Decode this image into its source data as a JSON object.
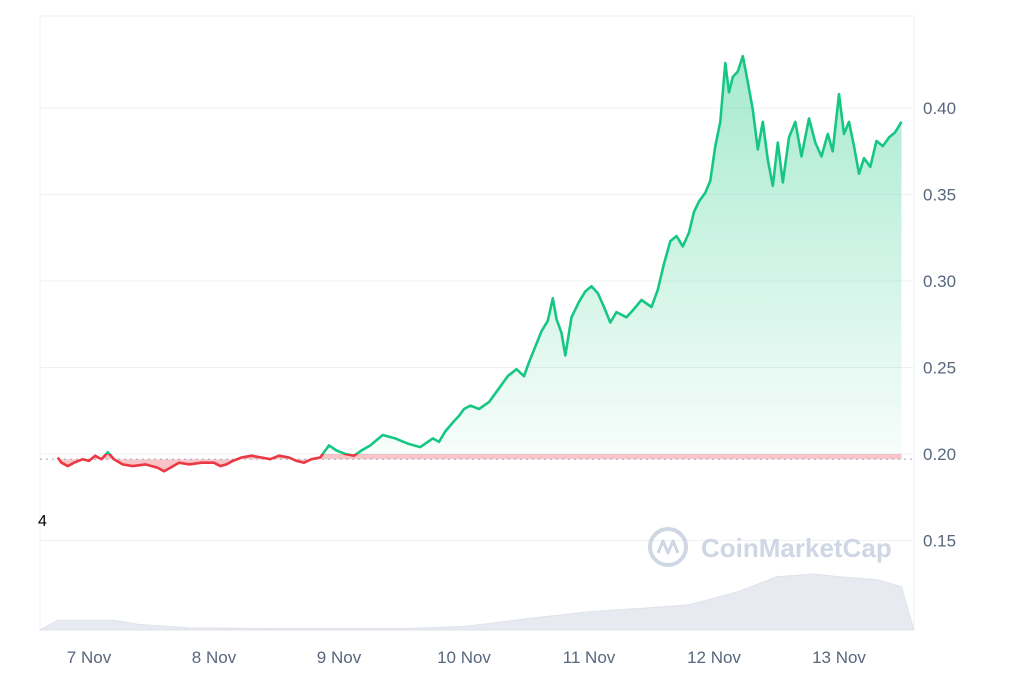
{
  "chart_data": {
    "type": "area",
    "title": "",
    "xlabel": "",
    "ylabel": "",
    "x_tick_labels": [
      "7 Nov",
      "8 Nov",
      "9 Nov",
      "10 Nov",
      "11 Nov",
      "12 Nov",
      "13 Nov"
    ],
    "y_tick_labels": [
      "0.15",
      "0.20",
      "0.25",
      "0.30",
      "0.35",
      "0.40"
    ],
    "ylim": [
      0.1,
      0.45
    ],
    "reference_price": 0.197,
    "corner_label": "4",
    "watermark": "CoinMarketCap",
    "grid": "horizontal",
    "colors": {
      "up": "#16c784",
      "down": "#ea3943",
      "volume": "#e7eaf0",
      "grid": "#eff2f5",
      "axis_text": "#58667e"
    },
    "series": [
      {
        "values": [
          {
            "t": 6.75,
            "v": 0.198
          },
          {
            "t": 6.78,
            "v": 0.195
          },
          {
            "t": 6.83,
            "v": 0.193
          },
          {
            "t": 6.88,
            "v": 0.195
          },
          {
            "t": 6.95,
            "v": 0.197
          },
          {
            "t": 7.0,
            "v": 0.196
          },
          {
            "t": 7.05,
            "v": 0.199
          },
          {
            "t": 7.1,
            "v": 0.197
          },
          {
            "t": 7.15,
            "v": 0.201
          },
          {
            "t": 7.2,
            "v": 0.197
          },
          {
            "t": 7.27,
            "v": 0.194
          },
          {
            "t": 7.35,
            "v": 0.193
          },
          {
            "t": 7.45,
            "v": 0.194
          },
          {
            "t": 7.55,
            "v": 0.192
          },
          {
            "t": 7.6,
            "v": 0.19
          },
          {
            "t": 7.65,
            "v": 0.192
          },
          {
            "t": 7.72,
            "v": 0.195
          },
          {
            "t": 7.8,
            "v": 0.194
          },
          {
            "t": 7.9,
            "v": 0.195
          },
          {
            "t": 8.0,
            "v": 0.195
          },
          {
            "t": 8.05,
            "v": 0.193
          },
          {
            "t": 8.1,
            "v": 0.194
          },
          {
            "t": 8.15,
            "v": 0.196
          },
          {
            "t": 8.22,
            "v": 0.198
          },
          {
            "t": 8.3,
            "v": 0.199
          },
          {
            "t": 8.38,
            "v": 0.198
          },
          {
            "t": 8.45,
            "v": 0.197
          },
          {
            "t": 8.52,
            "v": 0.199
          },
          {
            "t": 8.6,
            "v": 0.198
          },
          {
            "t": 8.66,
            "v": 0.196
          },
          {
            "t": 8.72,
            "v": 0.195
          },
          {
            "t": 8.78,
            "v": 0.197
          },
          {
            "t": 8.85,
            "v": 0.198
          },
          {
            "t": 8.92,
            "v": 0.205
          },
          {
            "t": 8.98,
            "v": 0.202
          },
          {
            "t": 9.05,
            "v": 0.2
          },
          {
            "t": 9.12,
            "v": 0.199
          },
          {
            "t": 9.18,
            "v": 0.202
          },
          {
            "t": 9.25,
            "v": 0.205
          },
          {
            "t": 9.35,
            "v": 0.211
          },
          {
            "t": 9.45,
            "v": 0.209
          },
          {
            "t": 9.55,
            "v": 0.206
          },
          {
            "t": 9.65,
            "v": 0.204
          },
          {
            "t": 9.75,
            "v": 0.209
          },
          {
            "t": 9.8,
            "v": 0.207
          },
          {
            "t": 9.85,
            "v": 0.213
          },
          {
            "t": 9.92,
            "v": 0.219
          },
          {
            "t": 9.96,
            "v": 0.222
          },
          {
            "t": 10.0,
            "v": 0.226
          },
          {
            "t": 10.05,
            "v": 0.228
          },
          {
            "t": 10.12,
            "v": 0.226
          },
          {
            "t": 10.2,
            "v": 0.23
          },
          {
            "t": 10.28,
            "v": 0.238
          },
          {
            "t": 10.35,
            "v": 0.245
          },
          {
            "t": 10.42,
            "v": 0.249
          },
          {
            "t": 10.48,
            "v": 0.245
          },
          {
            "t": 10.52,
            "v": 0.253
          },
          {
            "t": 10.57,
            "v": 0.262
          },
          {
            "t": 10.62,
            "v": 0.271
          },
          {
            "t": 10.67,
            "v": 0.277
          },
          {
            "t": 10.71,
            "v": 0.29
          },
          {
            "t": 10.74,
            "v": 0.278
          },
          {
            "t": 10.78,
            "v": 0.27
          },
          {
            "t": 10.81,
            "v": 0.257
          },
          {
            "t": 10.86,
            "v": 0.279
          },
          {
            "t": 10.92,
            "v": 0.288
          },
          {
            "t": 10.97,
            "v": 0.294
          },
          {
            "t": 11.02,
            "v": 0.297
          },
          {
            "t": 11.07,
            "v": 0.293
          },
          {
            "t": 11.12,
            "v": 0.285
          },
          {
            "t": 11.17,
            "v": 0.276
          },
          {
            "t": 11.22,
            "v": 0.282
          },
          {
            "t": 11.3,
            "v": 0.279
          },
          {
            "t": 11.35,
            "v": 0.283
          },
          {
            "t": 11.42,
            "v": 0.289
          },
          {
            "t": 11.5,
            "v": 0.285
          },
          {
            "t": 11.55,
            "v": 0.295
          },
          {
            "t": 11.6,
            "v": 0.31
          },
          {
            "t": 11.65,
            "v": 0.323
          },
          {
            "t": 11.7,
            "v": 0.326
          },
          {
            "t": 11.75,
            "v": 0.32
          },
          {
            "t": 11.8,
            "v": 0.328
          },
          {
            "t": 11.84,
            "v": 0.34
          },
          {
            "t": 11.88,
            "v": 0.346
          },
          {
            "t": 11.93,
            "v": 0.351
          },
          {
            "t": 11.97,
            "v": 0.358
          },
          {
            "t": 12.01,
            "v": 0.378
          },
          {
            "t": 12.05,
            "v": 0.392
          },
          {
            "t": 12.09,
            "v": 0.426
          },
          {
            "t": 12.12,
            "v": 0.409
          },
          {
            "t": 12.15,
            "v": 0.418
          },
          {
            "t": 12.19,
            "v": 0.421
          },
          {
            "t": 12.23,
            "v": 0.43
          },
          {
            "t": 12.27,
            "v": 0.415
          },
          {
            "t": 12.31,
            "v": 0.399
          },
          {
            "t": 12.35,
            "v": 0.376
          },
          {
            "t": 12.39,
            "v": 0.392
          },
          {
            "t": 12.43,
            "v": 0.37
          },
          {
            "t": 12.47,
            "v": 0.355
          },
          {
            "t": 12.51,
            "v": 0.38
          },
          {
            "t": 12.55,
            "v": 0.357
          },
          {
            "t": 12.6,
            "v": 0.383
          },
          {
            "t": 12.65,
            "v": 0.392
          },
          {
            "t": 12.7,
            "v": 0.372
          },
          {
            "t": 12.76,
            "v": 0.394
          },
          {
            "t": 12.81,
            "v": 0.38
          },
          {
            "t": 12.86,
            "v": 0.372
          },
          {
            "t": 12.91,
            "v": 0.385
          },
          {
            "t": 12.95,
            "v": 0.375
          },
          {
            "t": 13.0,
            "v": 0.408
          },
          {
            "t": 13.04,
            "v": 0.385
          },
          {
            "t": 13.08,
            "v": 0.392
          },
          {
            "t": 13.12,
            "v": 0.378
          },
          {
            "t": 13.16,
            "v": 0.362
          },
          {
            "t": 13.2,
            "v": 0.371
          },
          {
            "t": 13.25,
            "v": 0.366
          },
          {
            "t": 13.3,
            "v": 0.381
          },
          {
            "t": 13.35,
            "v": 0.378
          },
          {
            "t": 13.4,
            "v": 0.383
          },
          {
            "t": 13.45,
            "v": 0.386
          },
          {
            "t": 13.5,
            "v": 0.392
          }
        ]
      }
    ],
    "volume": [
      {
        "t": 6.75,
        "v": 0.14
      },
      {
        "t": 7.2,
        "v": 0.14
      },
      {
        "t": 7.4,
        "v": 0.08
      },
      {
        "t": 7.8,
        "v": 0.03
      },
      {
        "t": 8.5,
        "v": 0.02
      },
      {
        "t": 9.5,
        "v": 0.02
      },
      {
        "t": 10.0,
        "v": 0.05
      },
      {
        "t": 10.5,
        "v": 0.16
      },
      {
        "t": 11.0,
        "v": 0.26
      },
      {
        "t": 11.5,
        "v": 0.32
      },
      {
        "t": 11.8,
        "v": 0.36
      },
      {
        "t": 12.2,
        "v": 0.55
      },
      {
        "t": 12.5,
        "v": 0.76
      },
      {
        "t": 12.8,
        "v": 0.8
      },
      {
        "t": 13.0,
        "v": 0.76
      },
      {
        "t": 13.3,
        "v": 0.72
      },
      {
        "t": 13.5,
        "v": 0.62
      }
    ]
  }
}
